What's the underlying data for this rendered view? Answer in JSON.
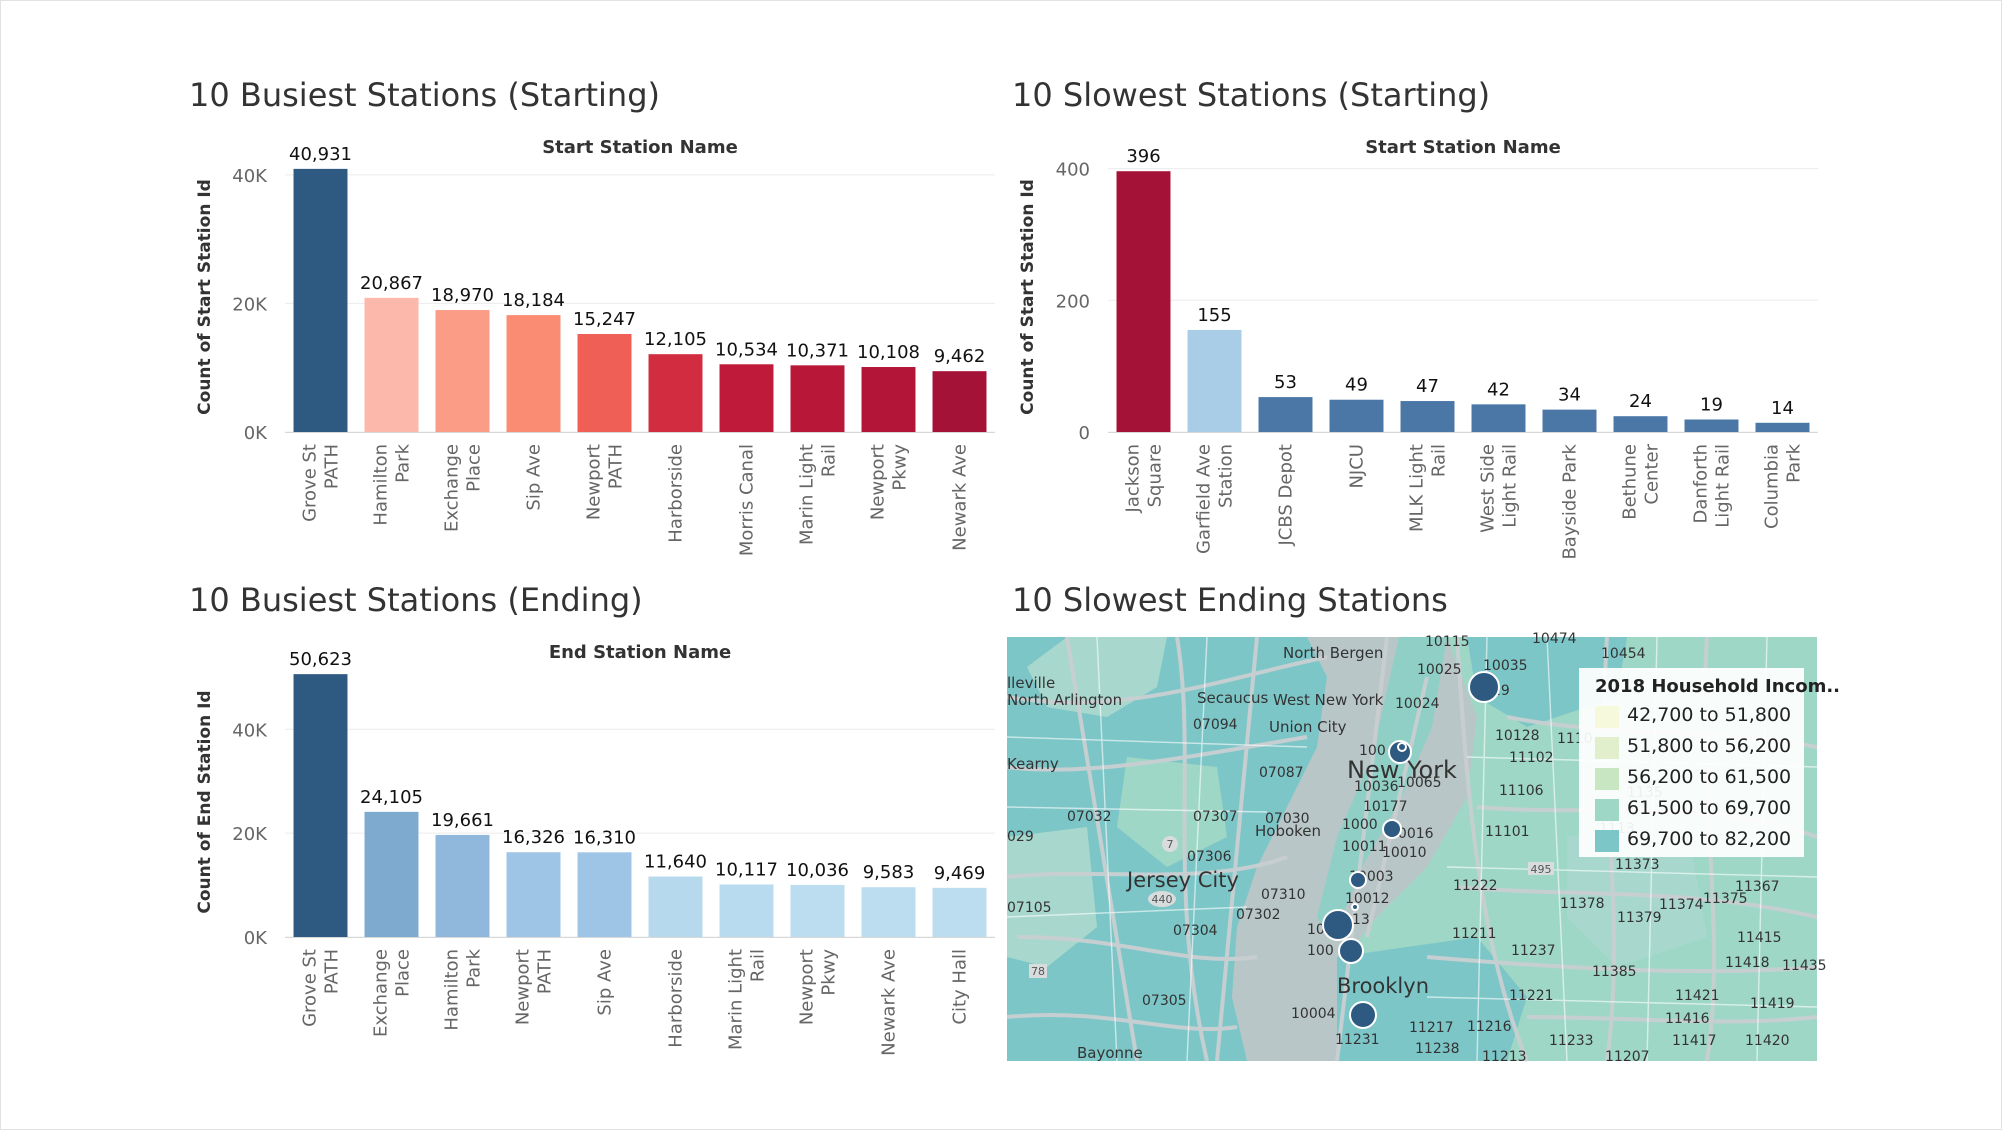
{
  "colors": {
    "blue_dark": "#2e5a82",
    "blue_med": "#4a77a6",
    "red_dark": "#a51237",
    "light_blue": "#a9cde6",
    "map_water": "#b9c6c8",
    "map_land": "#7dc6c8",
    "map_land_light": "#a8d8cd",
    "map_road": "#c9cfd1"
  },
  "titles": {
    "busiest_start": "10 Busiest Stations (Starting)",
    "slowest_start": "10 Slowest Stations (Starting)",
    "busiest_end": "10 Busiest Stations (Ending)",
    "slowest_end": "10 Slowest Ending Stations"
  },
  "chart_data": [
    {
      "type": "bar",
      "title": "10 Busiest Stations (Starting)",
      "xlabel": "Start Station Name",
      "ylabel": "Count of Start Station Id",
      "ylim": [
        0,
        42000
      ],
      "yticks": [
        0,
        20000,
        40000
      ],
      "ytick_labels": [
        "0K",
        "20K",
        "40K"
      ],
      "categories": [
        [
          "Grove St",
          "PATH"
        ],
        [
          "Hamilton",
          "Park"
        ],
        [
          "Exchange",
          "Place"
        ],
        [
          "Sip Ave"
        ],
        [
          "Newport",
          "PATH"
        ],
        [
          "Harborside"
        ],
        [
          "Morris Canal"
        ],
        [
          "Marin Light",
          "Rail"
        ],
        [
          "Newport",
          "Pkwy"
        ],
        [
          "Newark Ave"
        ]
      ],
      "values": [
        40931,
        20867,
        18970,
        18184,
        15247,
        12105,
        10534,
        10371,
        10108,
        9462
      ],
      "value_labels": [
        "40,931",
        "20,867",
        "18,970",
        "18,184",
        "15,247",
        "12,105",
        "10,534",
        "10,371",
        "10,108",
        "9,462"
      ],
      "bar_colors": [
        "#2e5a82",
        "#fcb8ab",
        "#fb9c86",
        "#fa8c74",
        "#ef5f55",
        "#d22c40",
        "#bf1a39",
        "#b91738",
        "#b31538",
        "#a51237"
      ],
      "grid": true
    },
    {
      "type": "bar",
      "title": "10 Slowest Stations (Starting)",
      "xlabel": "Start Station Name",
      "ylabel": "Count of Start Station Id",
      "ylim": [
        0,
        410
      ],
      "yticks": [
        0,
        200,
        400
      ],
      "ytick_labels": [
        "0",
        "200",
        "400"
      ],
      "categories": [
        [
          "Jackson",
          "Square"
        ],
        [
          "Garfield Ave",
          "Station"
        ],
        [
          "JCBS Depot"
        ],
        [
          "NJCU"
        ],
        [
          "MLK Light",
          "Rail"
        ],
        [
          "West Side",
          "Light Rail"
        ],
        [
          "Bayside Park"
        ],
        [
          "Bethune",
          "Center"
        ],
        [
          "Danforth",
          "Light Rail"
        ],
        [
          "Columbia",
          "Park"
        ]
      ],
      "values": [
        396,
        155,
        53,
        49,
        47,
        42,
        34,
        24,
        19,
        14
      ],
      "value_labels": [
        "396",
        "155",
        "53",
        "49",
        "47",
        "42",
        "34",
        "24",
        "19",
        "14"
      ],
      "bar_colors": [
        "#a51237",
        "#a9cde6",
        "#4a77a6",
        "#4a77a6",
        "#4a77a6",
        "#4a77a6",
        "#4a77a6",
        "#4a77a6",
        "#4a77a6",
        "#4a77a6"
      ],
      "grid": true
    },
    {
      "type": "bar",
      "title": "10 Busiest Stations (Ending)",
      "xlabel": "End Station Name",
      "ylabel": "Count of End Station Id",
      "ylim": [
        0,
        52000
      ],
      "yticks": [
        0,
        20000,
        40000
      ],
      "ytick_labels": [
        "0K",
        "20K",
        "40K"
      ],
      "categories": [
        [
          "Grove St",
          "PATH"
        ],
        [
          "Exchange",
          "Place"
        ],
        [
          "Hamilton",
          "Park"
        ],
        [
          "Newport",
          "PATH"
        ],
        [
          "Sip Ave"
        ],
        [
          "Harborside"
        ],
        [
          "Marin Light",
          "Rail"
        ],
        [
          "Newport",
          "Pkwy"
        ],
        [
          "Newark Ave"
        ],
        [
          "City Hall"
        ]
      ],
      "values": [
        50623,
        24105,
        19661,
        16326,
        16310,
        11640,
        10117,
        10036,
        9583,
        9469
      ],
      "value_labels": [
        "50,623",
        "24,105",
        "19,661",
        "16,326",
        "16,310",
        "11,640",
        "10,117",
        "10,036",
        "9,583",
        "9,469"
      ],
      "bar_colors": [
        "#2e5a82",
        "#7faad0",
        "#8fb8dc",
        "#9ec5e6",
        "#9ec5e6",
        "#b6d9ee",
        "#b9dbef",
        "#bcddf0",
        "#bcddf0",
        "#bcddf0"
      ],
      "grid": true
    }
  ],
  "map": {
    "title": "10 Slowest Ending Stations",
    "legend_title": "2018 Household Incom..",
    "legend": [
      {
        "label": "42,700 to 51,800",
        "color": "#f7f9dc"
      },
      {
        "label": "51,800 to 56,200",
        "color": "#e2efcd"
      },
      {
        "label": "56,200 to 61,500",
        "color": "#c9e6c3"
      },
      {
        "label": "61,500 to 69,700",
        "color": "#9fd7c6"
      },
      {
        "label": "69,700 to 82,200",
        "color": "#7dc6c8"
      }
    ],
    "labels": {
      "new_york": "New York",
      "jersey_city": "Jersey City",
      "brooklyn": "Brooklyn",
      "hoboken": "Hoboken",
      "union_city": "Union City",
      "north_bergen": "North Bergen",
      "secaucus": "Secaucus",
      "west_new_york": "West New York",
      "north_arlington": "North Arlington",
      "kearny": "Kearny",
      "belleville": "lleville",
      "bayonne": "Bayonne",
      "z_10115": "10115",
      "z_10474": "10474",
      "z_10454": "10454",
      "z_10035": "10035",
      "z_10025": "10025",
      "z_10029": "29",
      "z_10024": "10024",
      "z_10128": "10128",
      "z_1110": "1110",
      "z_11102": "11102",
      "z_10065": "10065",
      "z_11106": "11106",
      "z_10036": "10036",
      "z_10177": "10177",
      "z_10016": "10016",
      "z_10010": "10010",
      "z_10011": "10011",
      "z_1000": "1000",
      "z_11101": "11101",
      "z_1113": "1113",
      "z_10003": "10003",
      "z_10012": "10012",
      "z_013": "013",
      "z_10": "10",
      "z_1000b": "100",
      "z_10004": "10004",
      "z_11231": "11231",
      "z_11217": "11217",
      "z_11238": "11238",
      "z_11216": "11216",
      "z_11213": "11213",
      "z_11233": "11233",
      "z_11207": "11207",
      "z_11222": "11222",
      "z_11211": "11211",
      "z_11237": "11237",
      "z_11221": "11221",
      "z_11378": "11378",
      "z_11379": "11379",
      "z_11374": "11374",
      "z_11375": "11375",
      "z_11373": "11373",
      "z_11367": "11367",
      "z_11415": "11415",
      "z_11418": "11418",
      "z_11435": "11435",
      "z_11385": "11385",
      "z_11421": "11421",
      "z_11419": "11419",
      "z_11416": "11416",
      "z_11417": "11417",
      "z_11420": "11420",
      "z_07094": "07094",
      "z_07087": "07087",
      "z_07032": "07032",
      "z_07307": "07307",
      "z_07030": "07030",
      "z_07306": "07306",
      "z_07310": "07310",
      "z_07302": "07302",
      "z_07304": "07304",
      "z_07305": "07305",
      "z_07105": "07105",
      "z_029": "029",
      "z_10001": "100",
      "z_1135": "1135",
      "hw_440": "440",
      "hw_78": "78",
      "hw_7": "7",
      "hw_495": "495"
    }
  }
}
